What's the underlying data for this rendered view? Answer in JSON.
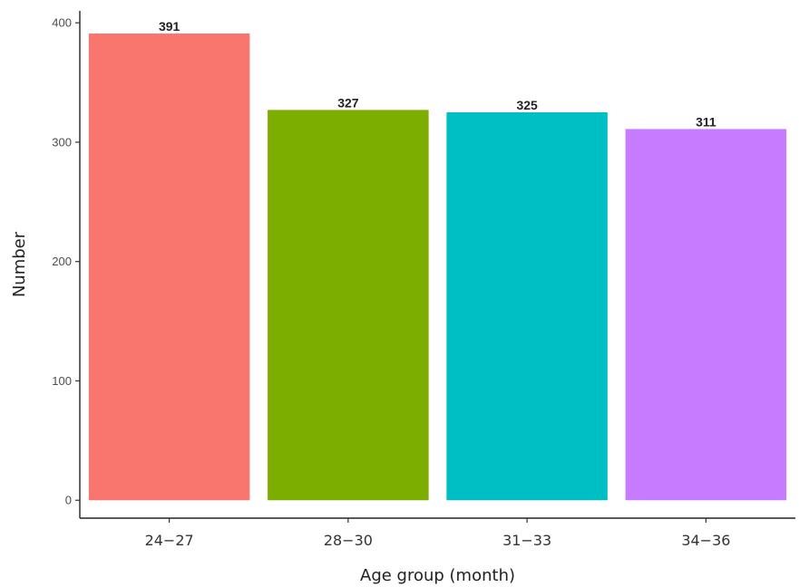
{
  "chart_data": {
    "type": "bar",
    "title": "",
    "xlabel": "Age group (month)",
    "ylabel": "Number",
    "categories": [
      "24−27",
      "28−30",
      "31−33",
      "34−36"
    ],
    "values": [
      391,
      327,
      325,
      311
    ],
    "value_labels": [
      "391",
      "327",
      "325",
      "311"
    ],
    "bar_colors": [
      "#F8766D",
      "#7CAE00",
      "#00BFC4",
      "#C77CFF"
    ],
    "ylim": [
      -15,
      410
    ],
    "yticks": [
      0,
      100,
      200,
      300,
      400
    ],
    "ytick_labels": [
      "0",
      "100",
      "200",
      "300",
      "400"
    ],
    "grid": false,
    "legend": "none"
  }
}
